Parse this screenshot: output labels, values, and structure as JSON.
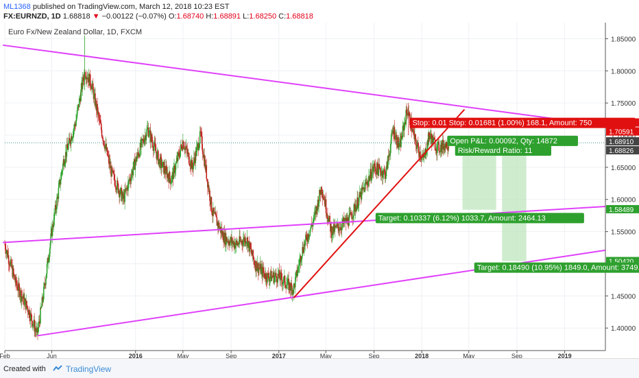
{
  "header": {
    "user": "ML1368",
    "published": " published on TradingView.com, March 12, 2018 10:23 EST",
    "symbol": "FX:EURNZD, 1D",
    "last": "1.68818",
    "change": "−0.00122 (−0.07%)",
    "open_label": "O:",
    "open": "1.68740",
    "high_label": "H:",
    "high": "1.68891",
    "low_label": "L:",
    "low": "1.68250",
    "close_label": "C:",
    "close": "1.68818"
  },
  "footer": {
    "created": "Created with",
    "brand": "TradingView"
  },
  "chart_data": {
    "type": "candlestick",
    "title": "Euro Fx/New Zealand Dollar, 1D, FXCM",
    "x_start": "2015-02-01",
    "x_end": "2019-04-15",
    "ylim": [
      1.365,
      1.875
    ],
    "y_ticks": [
      1.4,
      1.45,
      1.5,
      1.55,
      1.6,
      1.65,
      1.7,
      1.75,
      1.8,
      1.85
    ],
    "x_ticks": [
      {
        "date": "2015-02-01",
        "label": "Feb",
        "bold": false
      },
      {
        "date": "2015-06-01",
        "label": "Jun",
        "bold": false
      },
      {
        "date": "2016-01-01",
        "label": "2016",
        "bold": true
      },
      {
        "date": "2016-05-01",
        "label": "May",
        "bold": false
      },
      {
        "date": "2016-09-01",
        "label": "Sep",
        "bold": false
      },
      {
        "date": "2017-01-01",
        "label": "2017",
        "bold": true
      },
      {
        "date": "2017-05-01",
        "label": "May",
        "bold": false
      },
      {
        "date": "2017-09-01",
        "label": "Sep",
        "bold": false
      },
      {
        "date": "2018-01-01",
        "label": "2018",
        "bold": true
      },
      {
        "date": "2018-05-01",
        "label": "May",
        "bold": false
      },
      {
        "date": "2018-09-01",
        "label": "Sep",
        "bold": false
      },
      {
        "date": "2019-01-01",
        "label": "2019",
        "bold": true
      }
    ],
    "price_path": [
      [
        "2015-02-01",
        1.53
      ],
      [
        "2015-03-01",
        1.47
      ],
      [
        "2015-04-01",
        1.43
      ],
      [
        "2015-04-25",
        1.39
      ],
      [
        "2015-05-10",
        1.45
      ],
      [
        "2015-06-01",
        1.55
      ],
      [
        "2015-07-01",
        1.66
      ],
      [
        "2015-08-01",
        1.72
      ],
      [
        "2015-08-24",
        1.8
      ],
      [
        "2015-09-10",
        1.78
      ],
      [
        "2015-10-01",
        1.72
      ],
      [
        "2015-11-01",
        1.64
      ],
      [
        "2015-12-01",
        1.6
      ],
      [
        "2016-01-01",
        1.66
      ],
      [
        "2016-02-01",
        1.71
      ],
      [
        "2016-03-01",
        1.66
      ],
      [
        "2016-04-01",
        1.63
      ],
      [
        "2016-05-01",
        1.69
      ],
      [
        "2016-05-25",
        1.65
      ],
      [
        "2016-06-15",
        1.7
      ],
      [
        "2016-07-15",
        1.58
      ],
      [
        "2016-08-15",
        1.54
      ],
      [
        "2016-09-15",
        1.53
      ],
      [
        "2016-10-10",
        1.54
      ],
      [
        "2016-11-01",
        1.5
      ],
      [
        "2016-12-01",
        1.48
      ],
      [
        "2017-01-01",
        1.48
      ],
      [
        "2017-02-07",
        1.46
      ],
      [
        "2017-03-01",
        1.52
      ],
      [
        "2017-04-01",
        1.57
      ],
      [
        "2017-04-20",
        1.62
      ],
      [
        "2017-05-15",
        1.55
      ],
      [
        "2017-06-10",
        1.56
      ],
      [
        "2017-07-01",
        1.57
      ],
      [
        "2017-08-01",
        1.61
      ],
      [
        "2017-09-01",
        1.65
      ],
      [
        "2017-10-01",
        1.64
      ],
      [
        "2017-10-20",
        1.71
      ],
      [
        "2017-11-05",
        1.68
      ],
      [
        "2017-11-25",
        1.74
      ],
      [
        "2017-12-15",
        1.69
      ],
      [
        "2018-01-05",
        1.66
      ],
      [
        "2018-01-20",
        1.7
      ],
      [
        "2018-02-10",
        1.68
      ],
      [
        "2018-03-12",
        1.688
      ]
    ],
    "current_price": 1.68818,
    "trendlines": [
      {
        "name": "upper-resistance",
        "color": "#e040fb",
        "from": [
          "2015-01-27",
          1.84
        ],
        "to": [
          "2019-04-15",
          1.715
        ]
      },
      {
        "name": "middle-line",
        "color": "#e040fb",
        "from": [
          "2015-01-27",
          1.533
        ],
        "to": [
          "2019-04-15",
          1.589
        ]
      },
      {
        "name": "lower-support",
        "color": "#e040fb",
        "from": [
          "2015-04-25",
          1.388
        ],
        "to": [
          "2019-04-15",
          1.521
        ]
      },
      {
        "name": "rising-support",
        "color": "#e01010",
        "from": [
          "2017-02-08",
          1.447
        ],
        "to": [
          "2018-04-20",
          1.74
        ]
      }
    ],
    "target_zones": [
      {
        "from": "2018-04-15",
        "to": "2018-07-10",
        "top": 1.67,
        "bottom": 1.584
      },
      {
        "from": "2018-07-25",
        "to": "2018-09-25",
        "top": 1.67,
        "bottom": 1.504
      }
    ],
    "annotations": [
      {
        "text": "Stop: 0.01 Stop: 0.01681 (1.00%) 168.1, Amount: 750",
        "bg": "#e01010",
        "date": "2017-12-01",
        "price": 1.7185
      },
      {
        "text": "Open P&L: 0.00092, Qty: 14872",
        "bg": "#2ea02e",
        "date": "2018-03-07",
        "price": 1.6905
      },
      {
        "text": "Risk/Reward Ratio: 11",
        "bg": "#2ea02e",
        "date": "2018-03-27",
        "price": 1.6755
      },
      {
        "text": "Target: 0.10337 (6.12%) 1033.7, Amount: 2464.13",
        "bg": "#2ea02e",
        "date": "2017-09-05",
        "price": 1.5705
      },
      {
        "text": "Target: 0.18490 (10.95%) 1849.0, Amount: 3749.",
        "bg": "#2ea02e",
        "date": "2018-05-15",
        "price": 1.4935
      }
    ],
    "price_labels": [
      {
        "value": "1.70591",
        "bg": "#e01010",
        "price": 1.7197
      },
      {
        "value": "1.70591",
        "bg": "#e01010",
        "price": 1.7058
      },
      {
        "value": "1.68910",
        "bg": "#444444",
        "price": 1.6904
      },
      {
        "value": "1.68826",
        "bg": "#444444",
        "price": 1.6765
      },
      {
        "value": "1.58489",
        "bg": "#2ea02e",
        "price": 1.5849
      },
      {
        "value": "1.50420",
        "bg": "#2ea02e",
        "price": 1.5042
      }
    ]
  }
}
